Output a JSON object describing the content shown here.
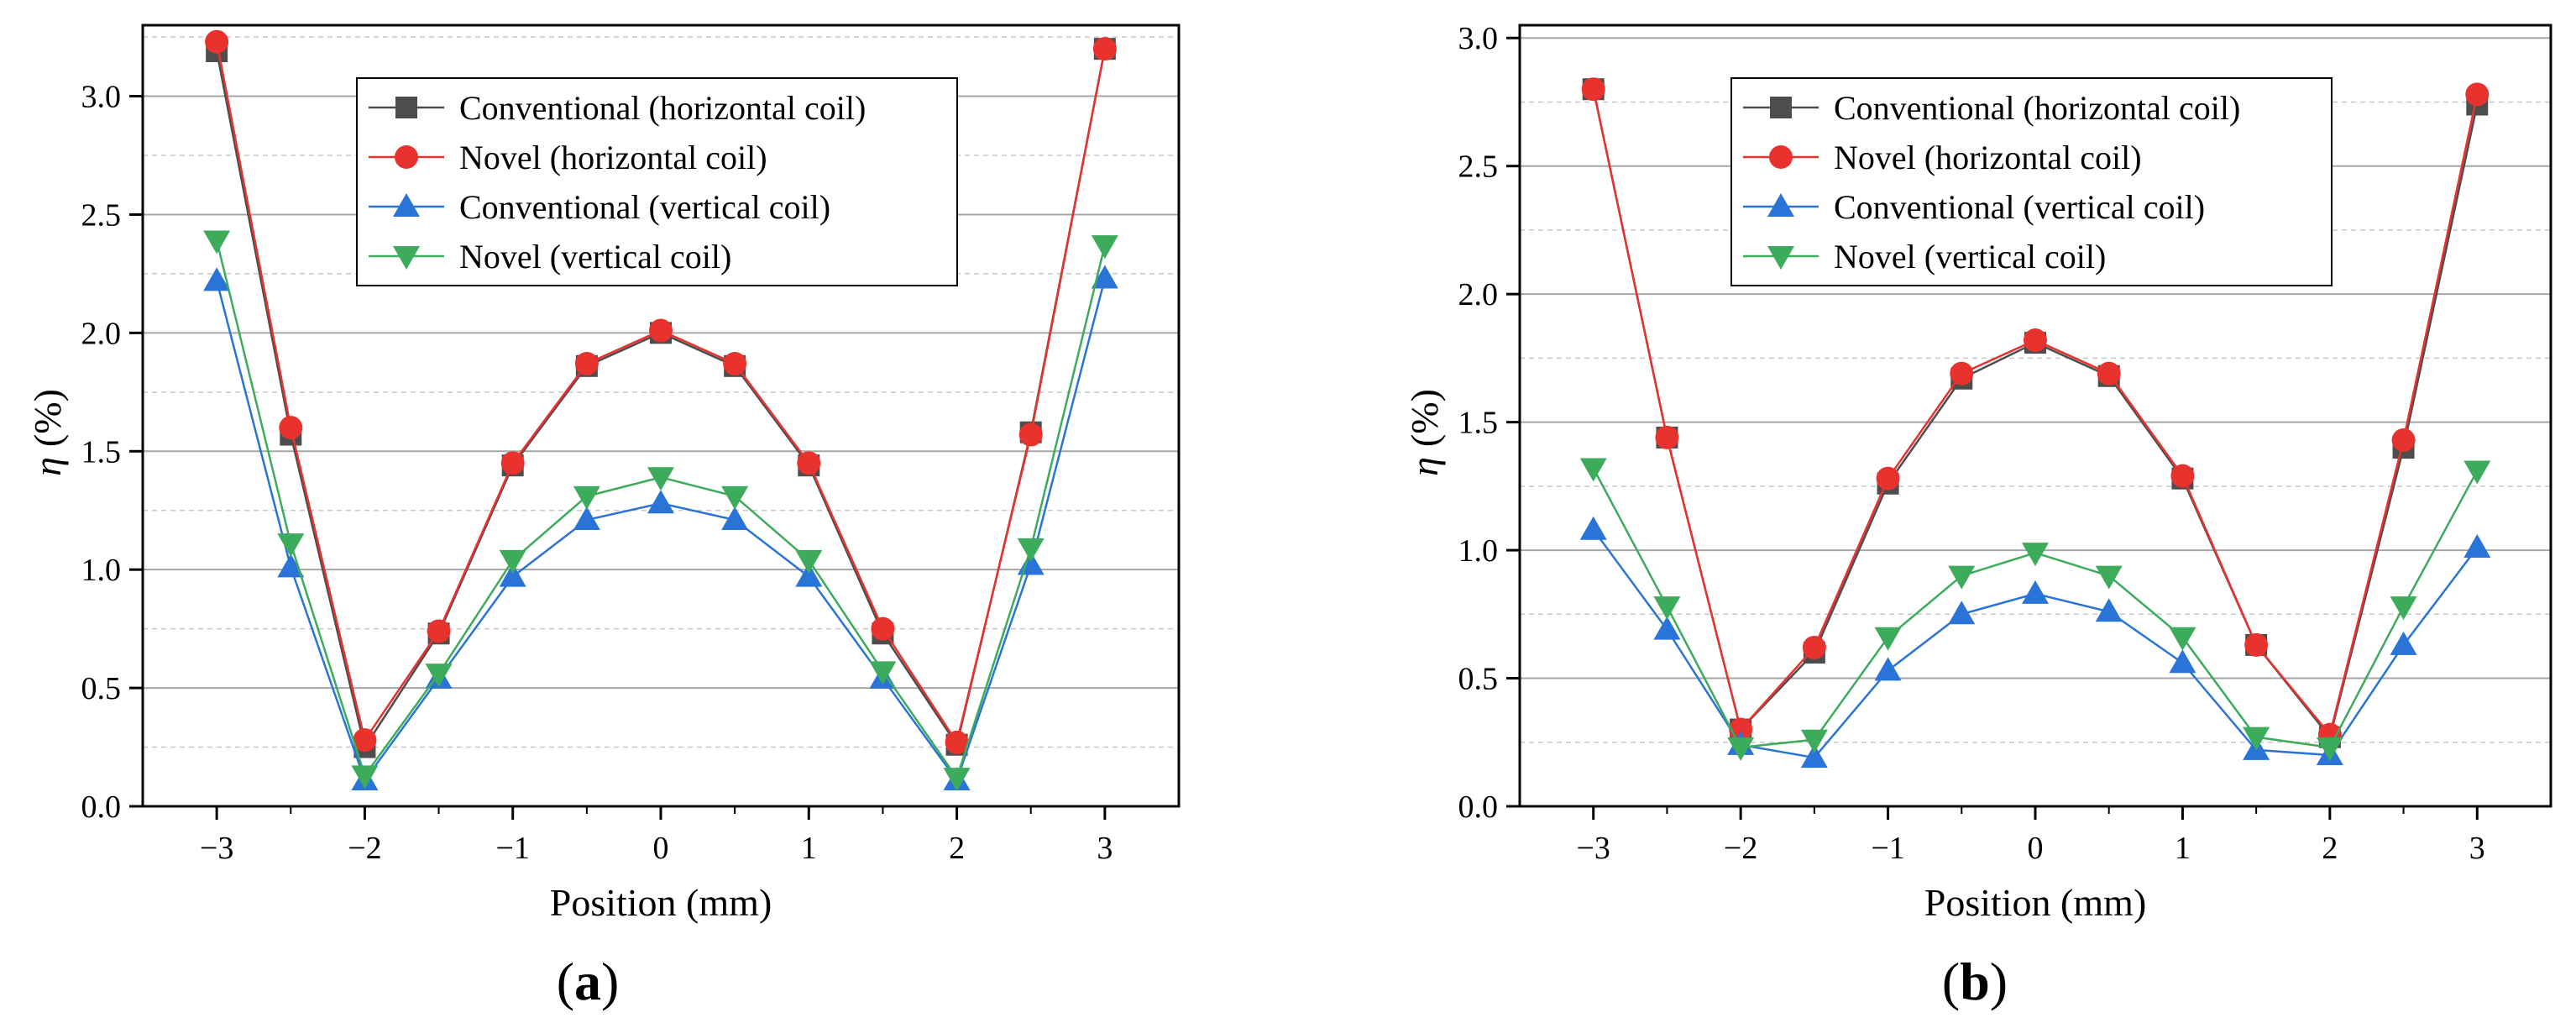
{
  "chart_data": [
    {
      "type": "line",
      "panel_label": "a",
      "xlabel": "Position (mm)",
      "ylabel_symbol": "η",
      "ylabel_unit": "(%)",
      "xlim": [
        -3.5,
        3.5
      ],
      "ylim": [
        0.0,
        3.3
      ],
      "xticks": [
        -3,
        -2,
        -1,
        0,
        1,
        2,
        3
      ],
      "xtick_labels": [
        "−3",
        "−2",
        "−1",
        "0",
        "1",
        "2",
        "3"
      ],
      "yticks": [
        0.0,
        0.5,
        1.0,
        1.5,
        2.0,
        2.5,
        3.0
      ],
      "ytick_labels": [
        "0.0",
        "0.5",
        "1.0",
        "1.5",
        "2.0",
        "2.5",
        "3.0"
      ],
      "grid": true,
      "legend_position": "top-center",
      "x": [
        -3,
        -2.5,
        -2,
        -1.5,
        -1,
        -0.5,
        0,
        0.5,
        1,
        1.5,
        2,
        2.5,
        3
      ],
      "series": [
        {
          "name": "Conventional (horizontal coil)",
          "color": "#4d4d4d",
          "marker": "square",
          "values": [
            3.19,
            1.57,
            0.25,
            0.73,
            1.44,
            1.86,
            2.0,
            1.86,
            1.44,
            0.73,
            0.26,
            1.58,
            3.2
          ]
        },
        {
          "name": "Novel (horizontal coil)",
          "color": "#e8322e",
          "marker": "circle",
          "values": [
            3.23,
            1.6,
            0.28,
            0.74,
            1.45,
            1.87,
            2.01,
            1.87,
            1.45,
            0.75,
            0.27,
            1.57,
            3.2
          ]
        },
        {
          "name": "Conventional (vertical coil)",
          "color": "#2a74d8",
          "marker": "triangle-up",
          "values": [
            2.22,
            1.01,
            0.11,
            0.54,
            0.97,
            1.21,
            1.28,
            1.21,
            0.97,
            0.54,
            0.11,
            1.02,
            2.23
          ]
        },
        {
          "name": "Novel (vertical coil)",
          "color": "#3cac5c",
          "marker": "triangle-down",
          "values": [
            2.39,
            1.11,
            0.13,
            0.56,
            1.04,
            1.31,
            1.39,
            1.31,
            1.04,
            0.57,
            0.12,
            1.09,
            2.37
          ]
        }
      ]
    },
    {
      "type": "line",
      "panel_label": "b",
      "xlabel": "Position (mm)",
      "ylabel_symbol": "η",
      "ylabel_unit": "(%)",
      "xlim": [
        -3.5,
        3.5
      ],
      "ylim": [
        0.0,
        3.05
      ],
      "xticks": [
        -3,
        -2,
        -1,
        0,
        1,
        2,
        3
      ],
      "xtick_labels": [
        "−3",
        "−2",
        "−1",
        "0",
        "1",
        "2",
        "3"
      ],
      "yticks": [
        0.0,
        0.5,
        1.0,
        1.5,
        2.0,
        2.5,
        3.0
      ],
      "ytick_labels": [
        "0.0",
        "0.5",
        "1.0",
        "1.5",
        "2.0",
        "2.5",
        "3.0"
      ],
      "grid": true,
      "legend_position": "top-center",
      "x": [
        -3,
        -2.5,
        -2,
        -1.5,
        -1,
        -0.5,
        0,
        0.5,
        1,
        1.5,
        2,
        2.5,
        3
      ],
      "series": [
        {
          "name": "Conventional (horizontal coil)",
          "color": "#4d4d4d",
          "marker": "square",
          "values": [
            2.8,
            1.44,
            0.3,
            0.6,
            1.26,
            1.67,
            1.81,
            1.68,
            1.28,
            0.63,
            0.27,
            1.4,
            2.74
          ]
        },
        {
          "name": "Novel (horizontal coil)",
          "color": "#e8322e",
          "marker": "circle",
          "values": [
            2.8,
            1.44,
            0.3,
            0.62,
            1.28,
            1.69,
            1.82,
            1.69,
            1.29,
            0.63,
            0.28,
            1.43,
            2.78
          ]
        },
        {
          "name": "Conventional (vertical coil)",
          "color": "#2a74d8",
          "marker": "triangle-up",
          "values": [
            1.08,
            0.69,
            0.24,
            0.19,
            0.53,
            0.75,
            0.83,
            0.76,
            0.56,
            0.22,
            0.2,
            0.63,
            1.01
          ]
        },
        {
          "name": "Novel (vertical coil)",
          "color": "#3cac5c",
          "marker": "triangle-down",
          "values": [
            1.32,
            0.78,
            0.23,
            0.26,
            0.66,
            0.9,
            0.99,
            0.9,
            0.66,
            0.27,
            0.23,
            0.78,
            1.31
          ]
        }
      ]
    }
  ]
}
